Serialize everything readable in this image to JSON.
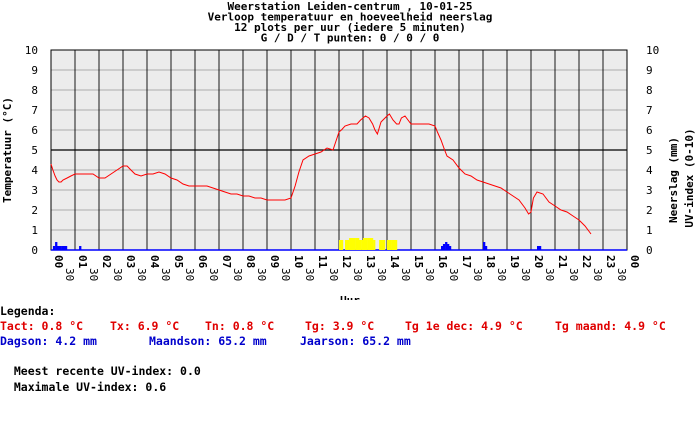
{
  "chart_data": {
    "type": "line",
    "title_lines": [
      "Weerstation Leiden-centrum , 10-01-25",
      "Verloop temperatuur en hoeveelheid neerslag",
      "12 plots per uur (iedere 5 minuten)",
      "G / D / T punten: 0 / 0 / 0"
    ],
    "xlabel": "Uur",
    "ylabel_left": "Temperatuur (°C)",
    "ylabel_right_1": "Neerslag (mm)",
    "ylabel_right_2": "UV-index (0-10)",
    "ylim": [
      0,
      10
    ],
    "y_ticks": [
      "0",
      "1",
      "2",
      "3",
      "4",
      "5",
      "6",
      "7",
      "8",
      "9",
      "10"
    ],
    "xlim": [
      0,
      24
    ],
    "x_hour_ticks": [
      "00",
      "01",
      "02",
      "03",
      "04",
      "05",
      "06",
      "07",
      "08",
      "09",
      "10",
      "11",
      "12",
      "13",
      "14",
      "15",
      "16",
      "17",
      "18",
      "19",
      "20",
      "21",
      "22",
      "23",
      "00"
    ],
    "x_half_label": "30",
    "grid": true,
    "colors": {
      "temperature": "#ff0000",
      "precipitation": "#0000ff",
      "uv": "#ffff00",
      "grid": "#000000",
      "background": "#ffffff"
    },
    "temperature": {
      "x": [
        0,
        0.08,
        0.17,
        0.25,
        0.33,
        0.42,
        0.5,
        0.67,
        0.83,
        1,
        1.25,
        1.5,
        1.75,
        2,
        2.25,
        2.5,
        2.75,
        3,
        3.17,
        3.33,
        3.5,
        3.75,
        4,
        4.25,
        4.5,
        4.75,
        5,
        5.25,
        5.5,
        5.75,
        6,
        6.25,
        6.5,
        6.75,
        7,
        7.25,
        7.5,
        7.75,
        8,
        8.25,
        8.5,
        8.75,
        9,
        9.25,
        9.5,
        9.75,
        10,
        10.17,
        10.33,
        10.5,
        10.75,
        11,
        11.25,
        11.5,
        11.75,
        12,
        12.1,
        12.25,
        12.5,
        12.75,
        12.9,
        13,
        13.1,
        13.25,
        13.4,
        13.5,
        13.6,
        13.75,
        14,
        14.1,
        14.25,
        14.4,
        14.5,
        14.6,
        14.75,
        15,
        15.25,
        15.5,
        15.75,
        16,
        16.1,
        16.25,
        16.4,
        16.5,
        16.75,
        17,
        17.25,
        17.5,
        17.75,
        18,
        18.25,
        18.5,
        18.75,
        19,
        19.25,
        19.5,
        19.75,
        19.9,
        20,
        20.1,
        20.25,
        20.5,
        20.75,
        21,
        21.25,
        21.5,
        21.75,
        22,
        22.25,
        22.5
      ],
      "y": [
        4.3,
        4.0,
        3.7,
        3.5,
        3.4,
        3.4,
        3.5,
        3.6,
        3.7,
        3.8,
        3.8,
        3.8,
        3.8,
        3.6,
        3.6,
        3.8,
        4.0,
        4.2,
        4.2,
        4.0,
        3.8,
        3.7,
        3.8,
        3.8,
        3.9,
        3.8,
        3.6,
        3.5,
        3.3,
        3.2,
        3.2,
        3.2,
        3.2,
        3.1,
        3.0,
        2.9,
        2.8,
        2.8,
        2.7,
        2.7,
        2.6,
        2.6,
        2.5,
        2.5,
        2.5,
        2.5,
        2.6,
        3.2,
        3.9,
        4.5,
        4.7,
        4.8,
        4.9,
        5.1,
        5.0,
        5.9,
        6.0,
        6.2,
        6.3,
        6.3,
        6.5,
        6.6,
        6.7,
        6.6,
        6.3,
        6.0,
        5.8,
        6.4,
        6.7,
        6.8,
        6.5,
        6.3,
        6.3,
        6.6,
        6.7,
        6.3,
        6.3,
        6.3,
        6.3,
        6.2,
        5.9,
        5.5,
        5.0,
        4.7,
        4.5,
        4.1,
        3.8,
        3.7,
        3.5,
        3.4,
        3.3,
        3.2,
        3.1,
        2.9,
        2.7,
        2.5,
        2.1,
        1.8,
        1.9,
        2.6,
        2.9,
        2.8,
        2.4,
        2.2,
        2.0,
        1.9,
        1.7,
        1.5,
        1.2,
        0.8
      ]
    },
    "precipitation_x": [
      0.08,
      0.17,
      0.25,
      0.33,
      0.42,
      0.5,
      0.58,
      1.17,
      16.25,
      16.33,
      16.42,
      16.5,
      16.58,
      18.0,
      18.08,
      20.25,
      20.33
    ],
    "precipitation_mm": [
      0.2,
      0.4,
      0.2,
      0.2,
      0.2,
      0.2,
      0.2,
      0.2,
      0.2,
      0.3,
      0.4,
      0.3,
      0.2,
      0.4,
      0.2,
      0.2,
      0.2
    ],
    "uv_x": [
      12.0,
      12.08,
      12.25,
      12.33,
      12.42,
      12.5,
      12.58,
      12.67,
      12.75,
      12.83,
      12.92,
      13.0,
      13.08,
      13.17,
      13.25,
      13.33,
      13.42,
      13.67,
      13.75,
      13.83,
      14.0,
      14.08,
      14.17,
      14.25,
      14.33
    ],
    "uv_index": [
      0.5,
      0.5,
      0.5,
      0.5,
      0.6,
      0.6,
      0.6,
      0.6,
      0.6,
      0.5,
      0.5,
      0.6,
      0.6,
      0.6,
      0.6,
      0.6,
      0.5,
      0.5,
      0.5,
      0.5,
      0.5,
      0.5,
      0.5,
      0.5,
      0.5
    ]
  },
  "legend": {
    "title": "Legenda:",
    "row1": [
      {
        "label": "Tact:",
        "value": "0.8 °C"
      },
      {
        "label": "Tx:",
        "value": "6.9 °C"
      },
      {
        "label": "Tn:",
        "value": "0.8 °C"
      },
      {
        "label": "Tg:",
        "value": "3.9 °C"
      },
      {
        "label": "Tg 1e dec:",
        "value": "4.9 °C"
      },
      {
        "label": "Tg maand:",
        "value": "4.9 °C"
      }
    ],
    "row2": [
      {
        "label": "Dagson:",
        "value": "4.2 mm"
      },
      {
        "label": "Maandson:",
        "value": "65.2 mm"
      },
      {
        "label": "Jaarson:",
        "value": "65.2 mm"
      }
    ],
    "uv_recent_label": "Meest recente UV-index:",
    "uv_recent_value": "0.0",
    "uv_max_label": "Maximale UV-index:",
    "uv_max_value": "0.6"
  }
}
